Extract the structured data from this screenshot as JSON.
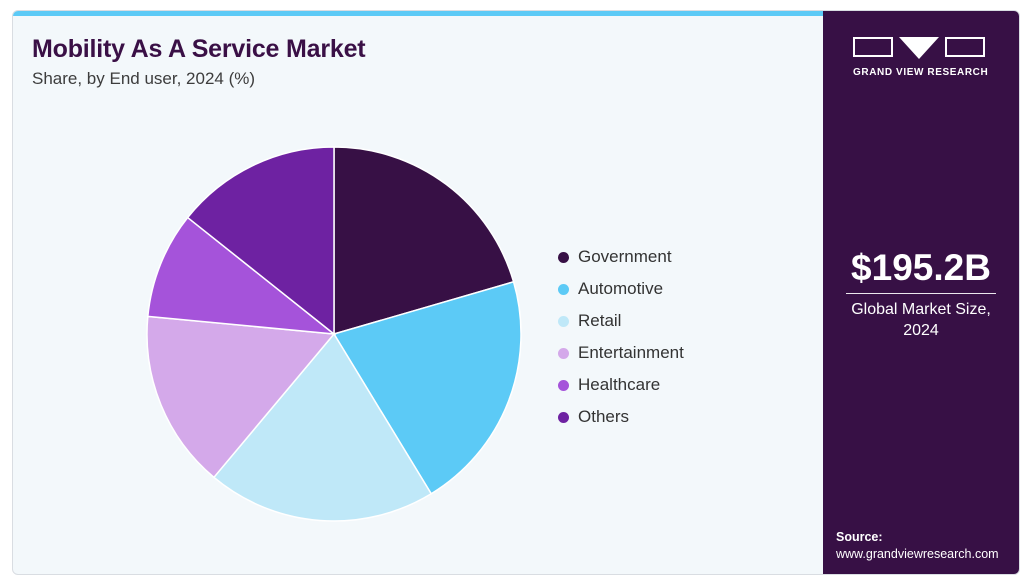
{
  "header": {
    "title": "Mobility As A Service Market",
    "subtitle": "Share, by End user, 2024 (%)"
  },
  "colors": {
    "accent_bar": "#5ccaf6",
    "panel_bg": "#371045",
    "card_bg": "#f3f8fb"
  },
  "chart_data": {
    "type": "pie",
    "title": "Mobility As A Service Market",
    "subtitle": "Share, by End user, 2024 (%)",
    "legend_position": "right",
    "start_angle_deg": 0,
    "direction": "clockwise",
    "slices": [
      {
        "label": "Government",
        "value": 20.5,
        "color": "#371045"
      },
      {
        "label": "Automotive",
        "value": 20.8,
        "color": "#5ccaf6"
      },
      {
        "label": "Retail",
        "value": 19.8,
        "color": "#bfe8f8"
      },
      {
        "label": "Entertainment",
        "value": 15.4,
        "color": "#d4a9ea"
      },
      {
        "label": "Healthcare",
        "value": 9.2,
        "color": "#a553da"
      },
      {
        "label": "Others",
        "value": 14.3,
        "color": "#6e22a2"
      }
    ]
  },
  "sidepanel": {
    "logo_icon": "grand-view-research-logo",
    "logo_text": "GRAND VIEW RESEARCH",
    "market_value": "$195.2B",
    "market_caption_line1": "Global Market Size,",
    "market_caption_line2": "2024",
    "source_label": "Source:",
    "source_url": "www.grandviewresearch.com"
  }
}
